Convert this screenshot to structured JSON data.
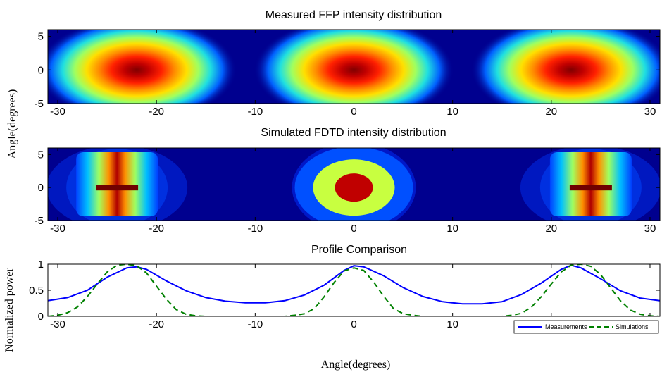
{
  "colors": {
    "measurements": "#0000ff",
    "simulations": "#008000",
    "heat_background": "#00008f"
  },
  "chart_data": [
    {
      "type": "heatmap",
      "title": "Measured FFP intensity distribution",
      "xlabel": "",
      "ylabel": "Angle(degrees)",
      "xlim": [
        -31,
        31
      ],
      "ylim": [
        -5,
        6
      ],
      "xticks": [
        "-30",
        "-20",
        "-10",
        "0",
        "10",
        "20",
        "30"
      ],
      "yticks": [
        "5",
        "0",
        "-5"
      ],
      "colormap": "jet",
      "lobes": [
        {
          "x": -22,
          "y": 0,
          "peak": 1.0,
          "sx": 4.6,
          "sy": 3.0
        },
        {
          "x": 0,
          "y": 0,
          "peak": 1.0,
          "sx": 4.6,
          "sy": 3.0
        },
        {
          "x": 22,
          "y": 0,
          "peak": 1.0,
          "sx": 4.6,
          "sy": 3.0
        }
      ]
    },
    {
      "type": "heatmap",
      "title": "Simulated FDTD intensity distribution",
      "xlabel": "",
      "ylabel": "Angle(degrees)",
      "xlim": [
        -31,
        31
      ],
      "ylim": [
        -5,
        6
      ],
      "xticks": [
        "-30",
        "-20",
        "-10",
        "0",
        "10",
        "20",
        "30"
      ],
      "yticks": [
        "5",
        "0",
        "-5"
      ],
      "colormap": "jet",
      "side_lobes_x": [
        -24,
        24
      ],
      "center_lobe_x": 0
    },
    {
      "type": "line",
      "title": "Profile Comparison",
      "xlabel": "Angle(degrees)",
      "ylabel": "Normalized power",
      "xlim": [
        -31,
        31
      ],
      "ylim": [
        0,
        1
      ],
      "xticks": [
        "-30",
        "-20",
        "-10",
        "0",
        "10",
        "20",
        "30"
      ],
      "yticks": [
        "1",
        "0.5",
        "0"
      ],
      "legend_position": "bottom-right",
      "series": [
        {
          "name": "Measurements",
          "style": "solid",
          "x": [
            -31,
            -29,
            -27,
            -25,
            -23,
            -22,
            -21,
            -19,
            -17,
            -15,
            -13,
            -11,
            -9,
            -7,
            -5,
            -3,
            -1,
            0,
            1,
            3,
            5,
            7,
            9,
            11,
            13,
            15,
            17,
            19,
            21,
            22,
            23,
            25,
            27,
            29,
            31
          ],
          "y": [
            0.3,
            0.36,
            0.5,
            0.75,
            0.93,
            0.95,
            0.9,
            0.68,
            0.49,
            0.36,
            0.29,
            0.26,
            0.26,
            0.3,
            0.41,
            0.6,
            0.88,
            0.97,
            0.95,
            0.78,
            0.55,
            0.38,
            0.28,
            0.24,
            0.24,
            0.28,
            0.42,
            0.64,
            0.9,
            0.98,
            0.93,
            0.72,
            0.49,
            0.35,
            0.3
          ]
        },
        {
          "name": "Simulations",
          "style": "dashed",
          "x": [
            -31,
            -30,
            -29,
            -28,
            -27,
            -26,
            -25,
            -24,
            -23,
            -22,
            -21,
            -20,
            -19,
            -18,
            -17,
            -16,
            -15,
            -14,
            -13,
            -12,
            -11,
            -10,
            -9,
            -8,
            -7,
            -6,
            -5,
            -4,
            -3,
            -2,
            -1,
            0,
            1,
            2,
            3,
            4,
            5,
            6,
            7,
            8,
            9,
            10,
            11,
            12,
            13,
            14,
            15,
            16,
            17,
            18,
            19,
            20,
            21,
            22,
            23,
            24,
            25,
            26,
            27,
            28,
            29,
            30,
            31
          ],
          "y": [
            0.0,
            0.02,
            0.07,
            0.18,
            0.38,
            0.62,
            0.85,
            0.98,
            1.0,
            0.97,
            0.83,
            0.58,
            0.33,
            0.13,
            0.04,
            0.01,
            0.0,
            0.0,
            0.0,
            0.0,
            0.0,
            0.0,
            0.0,
            0.0,
            0.0,
            0.02,
            0.05,
            0.15,
            0.38,
            0.65,
            0.87,
            0.93,
            0.88,
            0.66,
            0.39,
            0.15,
            0.05,
            0.02,
            0.0,
            0.0,
            0.0,
            0.0,
            0.0,
            0.0,
            0.0,
            0.0,
            0.0,
            0.02,
            0.06,
            0.18,
            0.38,
            0.62,
            0.85,
            0.98,
            1.0,
            0.96,
            0.8,
            0.55,
            0.3,
            0.12,
            0.04,
            0.01,
            0.0
          ]
        }
      ]
    }
  ]
}
